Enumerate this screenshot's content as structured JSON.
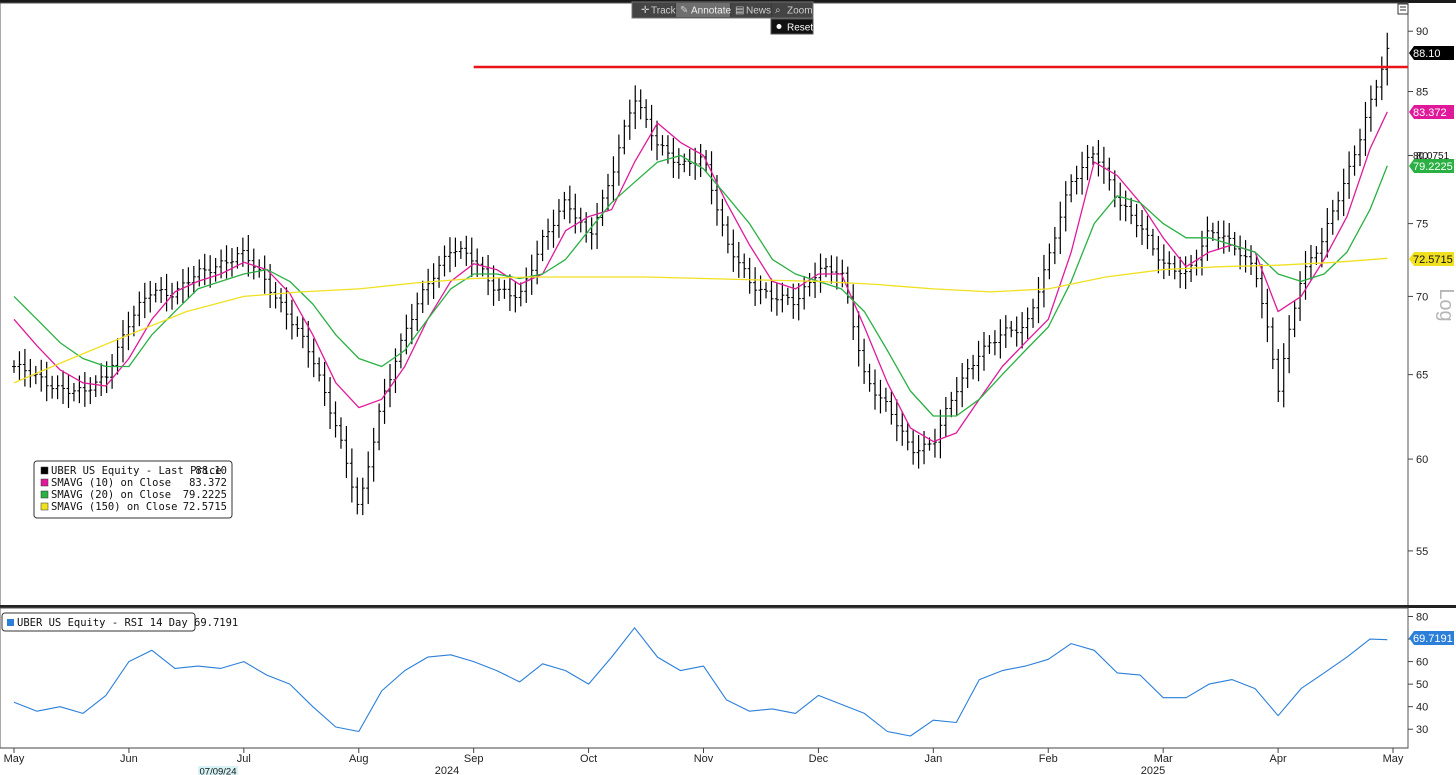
{
  "toolbar": {
    "track": "Track",
    "annotate": "Annotate",
    "news": "News",
    "zoom": "Zoom",
    "reset": "Reset"
  },
  "scale_label": "Log",
  "cursor_date": "07/09/24",
  "colors": {
    "price": "#000000",
    "sma10": "#e0199b",
    "sma20": "#2ab043",
    "sma150": "#f0e020",
    "rsi": "#2b7fd9",
    "resistance": "#e8141a"
  },
  "chart_data": [
    {
      "type": "line",
      "subtype": "ohlc",
      "scale": "log",
      "ylim": [
        52.5,
        92
      ],
      "y_ticks": [
        "55",
        "60",
        "65",
        "70",
        "75",
        "80",
        "85",
        "90"
      ],
      "x_labels": [
        "May",
        "Jun",
        "Jul",
        "Aug",
        "Sep",
        "Oct",
        "Nov",
        "Dec",
        "Jan",
        "Feb",
        "Mar",
        "Apr",
        "May"
      ],
      "year_labels": [
        "2024",
        "2025"
      ],
      "legend": [
        {
          "name": "UBER US Equity - Last Price",
          "value": "88.10",
          "color": "#000000"
        },
        {
          "name": "SMAVG (10)  on Close",
          "value": "83.372",
          "color": "#e0199b"
        },
        {
          "name": "SMAVG (20)  on Close",
          "value": "79.2225",
          "color": "#2ab043"
        },
        {
          "name": "SMAVG (150)  on Close",
          "value": "72.5715",
          "color": "#f0e020"
        }
      ],
      "last_labels": [
        {
          "value": "88.10",
          "color": "#000000",
          "text_color": "#ffffff"
        },
        {
          "value": "83.372",
          "color": "#e0199b",
          "text_color": "#ffffff"
        },
        {
          "value": "80.0751",
          "color": "#ffffff",
          "text_color": "#111111"
        },
        {
          "value": "79.2225",
          "color": "#2ab043",
          "text_color": "#ffffff"
        },
        {
          "value": "72.5715",
          "color": "#f0e020",
          "text_color": "#111111"
        }
      ],
      "resistance": {
        "start_month": 4.0,
        "value": 87.0
      },
      "series": [
        {
          "name": "UBER US Equity - Last Price",
          "x": [
            0,
            0.2,
            0.4,
            0.6,
            0.8,
            1.0,
            1.2,
            1.4,
            1.6,
            1.8,
            2.0,
            2.2,
            2.4,
            2.6,
            2.8,
            3.0,
            3.2,
            3.4,
            3.6,
            3.8,
            4.0,
            4.2,
            4.4,
            4.6,
            4.8,
            5.0,
            5.2,
            5.4,
            5.6,
            5.8,
            6.0,
            6.2,
            6.4,
            6.6,
            6.8,
            7.0,
            7.2,
            7.4,
            7.6,
            7.8,
            8.0,
            8.2,
            8.4,
            8.6,
            8.8,
            9.0,
            9.2,
            9.4,
            9.6,
            9.8,
            10.0,
            10.2,
            10.4,
            10.6,
            10.8,
            11.0,
            11.2,
            11.4,
            11.6,
            11.8,
            11.95
          ],
          "close": [
            65.5,
            64.8,
            64.2,
            63.8,
            65.0,
            68.2,
            70.5,
            70.2,
            71.5,
            72.3,
            72.8,
            71.0,
            68.5,
            66.0,
            62.0,
            57.0,
            63.5,
            67.5,
            71.0,
            73.2,
            72.5,
            70.5,
            69.8,
            74.0,
            76.5,
            74.0,
            78.5,
            84.5,
            81.0,
            79.0,
            80.0,
            73.5,
            71.0,
            70.0,
            69.5,
            72.0,
            71.5,
            65.0,
            63.0,
            60.5,
            61.0,
            64.0,
            66.5,
            67.5,
            68.0,
            72.5,
            78.0,
            80.5,
            76.5,
            75.0,
            72.0,
            71.5,
            74.5,
            73.5,
            72.0,
            64.0,
            71.5,
            74.0,
            78.5,
            84.0,
            88.1
          ]
        },
        {
          "name": "SMAVG (10)  on Close",
          "x": [
            0,
            0.2,
            0.4,
            0.6,
            0.8,
            1.0,
            1.2,
            1.4,
            1.6,
            1.8,
            2.0,
            2.2,
            2.4,
            2.6,
            2.8,
            3.0,
            3.2,
            3.4,
            3.6,
            3.8,
            4.0,
            4.2,
            4.4,
            4.6,
            4.8,
            5.0,
            5.2,
            5.4,
            5.6,
            5.8,
            6.0,
            6.2,
            6.4,
            6.6,
            6.8,
            7.0,
            7.2,
            7.4,
            7.6,
            7.8,
            8.0,
            8.2,
            8.4,
            8.6,
            8.8,
            9.0,
            9.2,
            9.4,
            9.6,
            9.8,
            10.0,
            10.2,
            10.4,
            10.6,
            10.8,
            11.0,
            11.2,
            11.4,
            11.6,
            11.8,
            11.95
          ],
          "values": [
            68.5,
            66.8,
            65.3,
            64.5,
            64.3,
            66.0,
            68.5,
            70.3,
            71.0,
            71.5,
            72.3,
            71.8,
            70.2,
            67.5,
            64.5,
            63.0,
            63.5,
            65.5,
            68.5,
            71.0,
            72.2,
            71.8,
            70.8,
            71.5,
            74.5,
            75.5,
            76.0,
            79.5,
            82.5,
            81.0,
            80.0,
            76.5,
            73.5,
            71.0,
            70.5,
            71.5,
            71.5,
            68.0,
            64.5,
            61.8,
            61.0,
            61.5,
            63.5,
            65.5,
            67.0,
            68.5,
            73.0,
            79.5,
            78.5,
            76.5,
            74.0,
            72.0,
            73.0,
            73.5,
            73.0,
            69.0,
            70.0,
            72.5,
            75.5,
            80.5,
            83.372
          ]
        },
        {
          "name": "SMAVG (20)  on Close",
          "x": [
            0,
            0.2,
            0.4,
            0.6,
            0.8,
            1.0,
            1.2,
            1.4,
            1.6,
            1.8,
            2.0,
            2.2,
            2.4,
            2.6,
            2.8,
            3.0,
            3.2,
            3.4,
            3.6,
            3.8,
            4.0,
            4.2,
            4.4,
            4.6,
            4.8,
            5.0,
            5.2,
            5.4,
            5.6,
            5.8,
            6.0,
            6.2,
            6.4,
            6.6,
            6.8,
            7.0,
            7.2,
            7.4,
            7.6,
            7.8,
            8.0,
            8.2,
            8.4,
            8.6,
            8.8,
            9.0,
            9.2,
            9.4,
            9.6,
            9.8,
            10.0,
            10.2,
            10.4,
            10.6,
            10.8,
            11.0,
            11.2,
            11.4,
            11.6,
            11.8,
            11.95
          ],
          "values": [
            70.0,
            68.5,
            67.0,
            66.0,
            65.5,
            65.5,
            67.5,
            69.0,
            70.5,
            71.0,
            71.5,
            71.8,
            71.0,
            69.5,
            67.5,
            66.0,
            65.5,
            66.5,
            68.5,
            70.5,
            71.5,
            71.5,
            71.2,
            71.5,
            72.5,
            74.5,
            76.5,
            78.0,
            79.5,
            80.0,
            79.0,
            77.0,
            75.0,
            72.5,
            71.5,
            71.0,
            70.5,
            69.0,
            66.5,
            64.0,
            62.5,
            62.5,
            63.5,
            65.0,
            66.5,
            68.0,
            71.0,
            75.0,
            77.0,
            76.5,
            75.0,
            74.0,
            74.0,
            73.5,
            73.0,
            71.5,
            71.0,
            71.5,
            73.0,
            76.0,
            79.2225
          ]
        },
        {
          "name": "SMAVG (150)  on Close",
          "x": [
            0,
            0.5,
            1.0,
            1.5,
            2.0,
            2.5,
            3.0,
            3.5,
            4.0,
            4.5,
            5.0,
            5.5,
            6.0,
            6.5,
            7.0,
            7.5,
            8.0,
            8.5,
            9.0,
            9.5,
            10.0,
            10.5,
            11.0,
            11.5,
            11.95
          ],
          "values": [
            64.5,
            66.0,
            67.5,
            69.0,
            70.0,
            70.3,
            70.5,
            70.9,
            71.2,
            71.3,
            71.3,
            71.3,
            71.2,
            71.1,
            71.0,
            70.8,
            70.5,
            70.3,
            70.5,
            71.3,
            71.8,
            72.0,
            72.1,
            72.3,
            72.5715
          ]
        }
      ]
    },
    {
      "type": "line",
      "ylim": [
        23,
        82
      ],
      "y_ticks": [
        "30",
        "40",
        "50",
        "60",
        "70",
        "80"
      ],
      "legend": [
        {
          "name": "UBER US Equity - RSI 14 Day",
          "value": "69.7191",
          "color": "#2b7fd9"
        }
      ],
      "last_label": {
        "value": "69.7191",
        "color": "#2b7fd9"
      },
      "series": [
        {
          "name": "UBER US Equity - RSI 14 Day",
          "x": [
            0,
            0.2,
            0.4,
            0.6,
            0.8,
            1.0,
            1.2,
            1.4,
            1.6,
            1.8,
            2.0,
            2.2,
            2.4,
            2.6,
            2.8,
            3.0,
            3.2,
            3.4,
            3.6,
            3.8,
            4.0,
            4.2,
            4.4,
            4.6,
            4.8,
            5.0,
            5.2,
            5.4,
            5.6,
            5.8,
            6.0,
            6.2,
            6.4,
            6.6,
            6.8,
            7.0,
            7.2,
            7.4,
            7.6,
            7.8,
            8.0,
            8.2,
            8.4,
            8.6,
            8.8,
            9.0,
            9.2,
            9.4,
            9.6,
            9.8,
            10.0,
            10.2,
            10.4,
            10.6,
            10.8,
            11.0,
            11.2,
            11.4,
            11.6,
            11.8,
            11.95
          ],
          "values": [
            42,
            38,
            40,
            37,
            45,
            60,
            65,
            57,
            58,
            57,
            60,
            54,
            50,
            40,
            31,
            29,
            47,
            56,
            62,
            63,
            60,
            56,
            51,
            59,
            56,
            50,
            62,
            75,
            62,
            56,
            58,
            43,
            38,
            39,
            37,
            45,
            41,
            37,
            29,
            27,
            34,
            33,
            52,
            56,
            58,
            61,
            68,
            65,
            55,
            54,
            44,
            44,
            50,
            52,
            48,
            36,
            48,
            55,
            62,
            70,
            69.7191
          ]
        }
      ]
    }
  ]
}
